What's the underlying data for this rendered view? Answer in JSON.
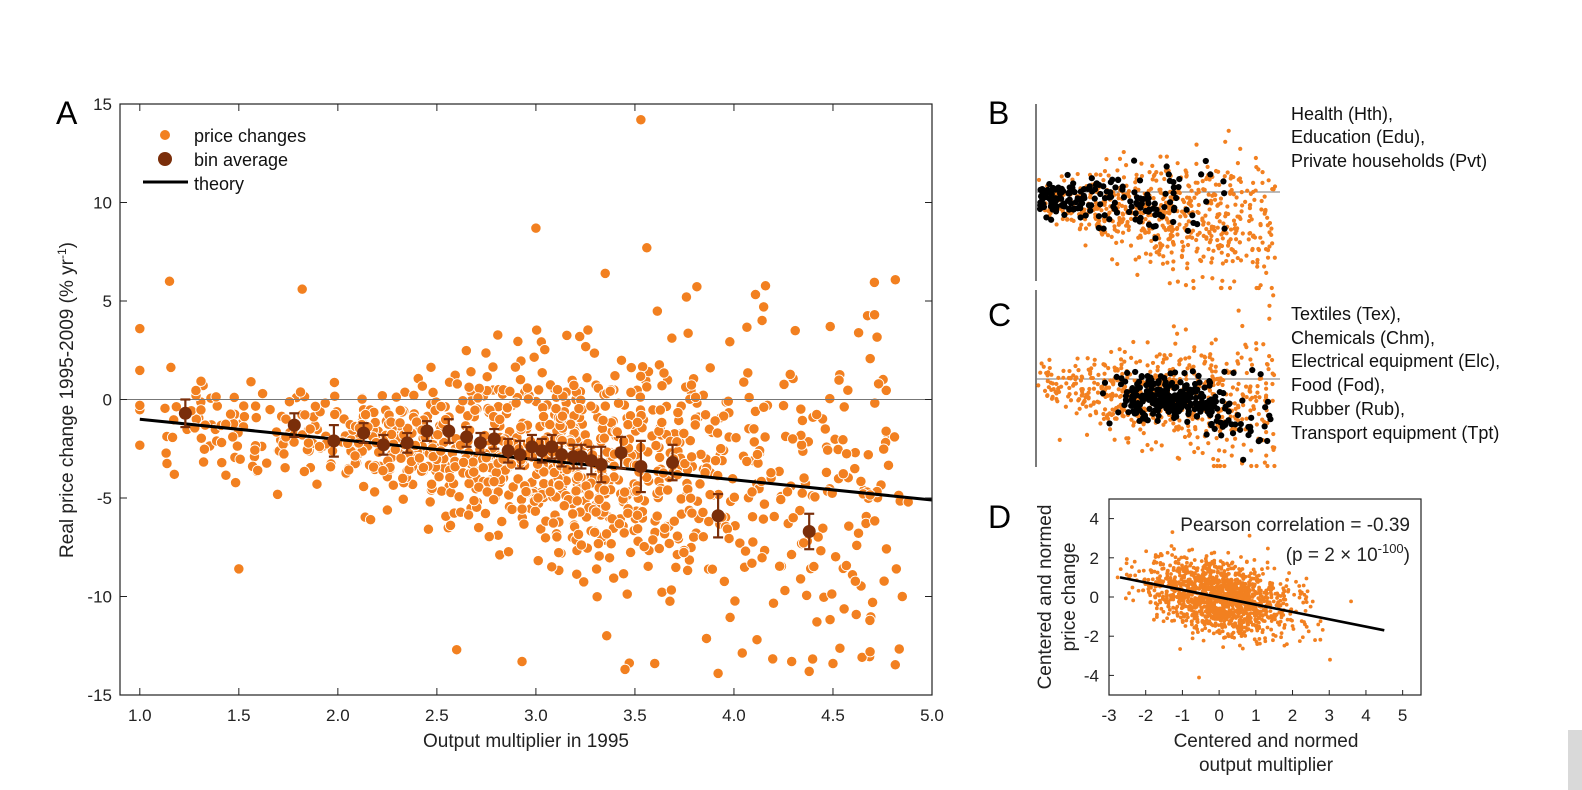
{
  "colors": {
    "orange": "#f28020",
    "brown": "#7a2e0a",
    "black": "#000000",
    "zero_line": "#777777"
  },
  "chart_data": [
    {
      "panel": "A",
      "type": "scatter",
      "xlabel": "Output multiplier in 1995",
      "ylabel": "Real price change 1995-2009 (% yr",
      "ylabel_sup": "-1",
      "ylabel_end": ")",
      "xlim": [
        0.9,
        5.0
      ],
      "ylim": [
        -15,
        15
      ],
      "xticks": [
        "1.0",
        "1.5",
        "2.0",
        "2.5",
        "3.0",
        "3.5",
        "4.0",
        "4.5",
        "5.0"
      ],
      "yticks": [
        "15",
        "10",
        "5",
        "0",
        "-5",
        "-10",
        "-15"
      ],
      "zero_line": true,
      "legend": {
        "placement": "top-left",
        "items": [
          "price changes",
          "bin average",
          "theory"
        ]
      },
      "theory": {
        "x": [
          1.0,
          5.0
        ],
        "y": [
          -1.0,
          -5.1
        ]
      },
      "bin_average": [
        {
          "x": 1.23,
          "y": -0.7,
          "err": 0.7
        },
        {
          "x": 1.78,
          "y": -1.3,
          "err": 0.6
        },
        {
          "x": 1.98,
          "y": -2.1,
          "err": 0.8
        },
        {
          "x": 2.13,
          "y": -1.7,
          "err": 0.5
        },
        {
          "x": 2.23,
          "y": -2.3,
          "err": 0.5
        },
        {
          "x": 2.35,
          "y": -2.2,
          "err": 0.5
        },
        {
          "x": 2.45,
          "y": -1.6,
          "err": 0.5
        },
        {
          "x": 2.56,
          "y": -1.6,
          "err": 0.6
        },
        {
          "x": 2.65,
          "y": -1.9,
          "err": 0.5
        },
        {
          "x": 2.72,
          "y": -2.2,
          "err": 0.5
        },
        {
          "x": 2.79,
          "y": -2.0,
          "err": 0.5
        },
        {
          "x": 2.86,
          "y": -2.6,
          "err": 0.6
        },
        {
          "x": 2.92,
          "y": -2.8,
          "err": 0.7
        },
        {
          "x": 2.98,
          "y": -2.4,
          "err": 0.6
        },
        {
          "x": 3.03,
          "y": -2.6,
          "err": 0.6
        },
        {
          "x": 3.08,
          "y": -2.4,
          "err": 0.6
        },
        {
          "x": 3.13,
          "y": -2.8,
          "err": 0.6
        },
        {
          "x": 3.19,
          "y": -2.9,
          "err": 0.6
        },
        {
          "x": 3.23,
          "y": -2.9,
          "err": 0.6
        },
        {
          "x": 3.28,
          "y": -3.1,
          "err": 0.7
        },
        {
          "x": 3.33,
          "y": -3.3,
          "err": 0.9
        },
        {
          "x": 3.43,
          "y": -2.7,
          "err": 0.8
        },
        {
          "x": 3.53,
          "y": -3.4,
          "err": 1.3
        },
        {
          "x": 3.69,
          "y": -3.2,
          "err": 0.9
        },
        {
          "x": 3.92,
          "y": -5.9,
          "err": 1.1
        },
        {
          "x": 4.38,
          "y": -6.7,
          "err": 0.9
        }
      ],
      "outliers": [
        {
          "x": 3.53,
          "y": 14.2
        },
        {
          "x": 3.0,
          "y": 8.7
        },
        {
          "x": 3.56,
          "y": 7.7
        },
        {
          "x": 1.15,
          "y": 6.0
        },
        {
          "x": 3.35,
          "y": 6.4
        },
        {
          "x": 4.71,
          "y": 4.3
        },
        {
          "x": 4.15,
          "y": 4.7
        },
        {
          "x": 1.0,
          "y": 3.6
        },
        {
          "x": 1.82,
          "y": 5.6
        },
        {
          "x": 3.45,
          "y": -13.7
        },
        {
          "x": 3.6,
          "y": -13.4
        },
        {
          "x": 4.38,
          "y": -13.8
        },
        {
          "x": 4.5,
          "y": -13.4
        },
        {
          "x": 3.92,
          "y": -13.9
        },
        {
          "x": 2.93,
          "y": -13.3
        },
        {
          "x": 2.6,
          "y": -12.7
        },
        {
          "x": 1.5,
          "y": -8.6
        },
        {
          "x": 4.88,
          "y": -5.2
        },
        {
          "x": 4.85,
          "y": -10.0
        },
        {
          "x": 4.7,
          "y": -10.3
        },
        {
          "x": 4.82,
          "y": -8.6
        }
      ]
    },
    {
      "panel": "B",
      "type": "scatter",
      "sectors": [
        "Health (Hth),",
        "Education (Edu),",
        "Private households (Pvt)"
      ]
    },
    {
      "panel": "C",
      "type": "scatter",
      "sectors": [
        "Textiles (Tex),",
        "Chemicals (Chm),",
        "Electrical equipment (Elc),",
        "Food (Fod),",
        "Rubber (Rub),",
        "Transport equipment (Tpt)"
      ]
    },
    {
      "panel": "D",
      "type": "scatter",
      "xlabel": [
        "Centered and normed",
        "output multiplier"
      ],
      "ylabel": [
        "Centered and normed",
        "price change"
      ],
      "xlim": [
        -3,
        5.5
      ],
      "ylim": [
        -5,
        5
      ],
      "xticks": [
        "-3",
        "-2",
        "-1",
        "0",
        "1",
        "2",
        "3",
        "4",
        "5"
      ],
      "yticks": [
        "4",
        "2",
        "0",
        "-2",
        "-4"
      ],
      "annotation": "Pearson correlation = -0.39",
      "annotation_p": "(p = 2 × 10",
      "annotation_p_sup": "-100",
      "annotation_p_end": ")",
      "fit": {
        "x": [
          -2.7,
          4.5
        ],
        "y": [
          1.0,
          -1.7
        ]
      }
    }
  ]
}
